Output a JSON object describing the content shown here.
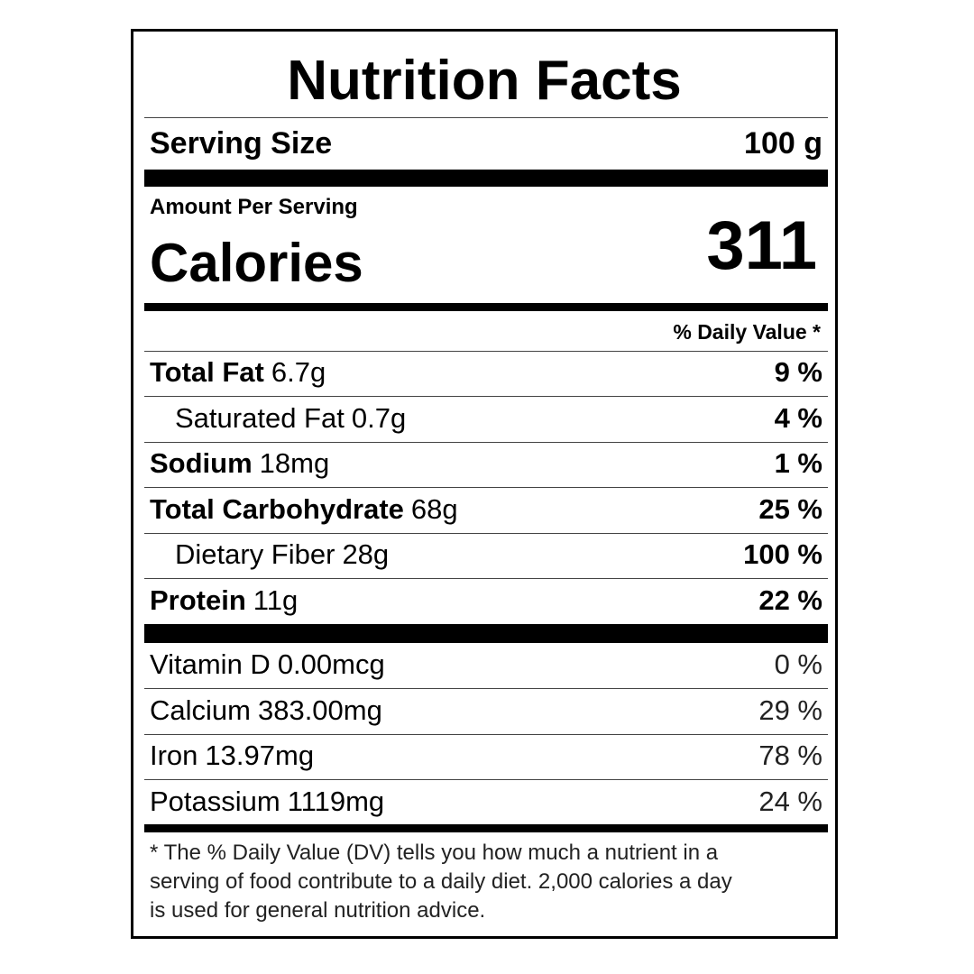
{
  "label": {
    "title": "Nutrition Facts",
    "serving": {
      "label": "Serving Size",
      "value": "100 g"
    },
    "amount_per_serving": "Amount Per Serving",
    "calories": {
      "label": "Calories",
      "value": "311"
    },
    "daily_value_header": "% Daily Value *",
    "nutrients": [
      {
        "name": "Total Fat",
        "amount": "6.7g",
        "dv": "9 %",
        "indent": false
      },
      {
        "name": "Saturated Fat",
        "amount": "0.7g",
        "dv": "4 %",
        "indent": true
      },
      {
        "name": "Sodium",
        "amount": "18mg",
        "dv": "1 %",
        "indent": false
      },
      {
        "name": "Total Carbohydrate",
        "amount": "68g",
        "dv": "25 %",
        "indent": false
      },
      {
        "name": "Dietary Fiber",
        "amount": "28g",
        "dv": "100 %",
        "indent": true
      },
      {
        "name": "Protein",
        "amount": "11g",
        "dv": "22 %",
        "indent": false
      }
    ],
    "vitamins": [
      {
        "name": "Vitamin D",
        "amount": "0.00mcg",
        "dv": "0 %"
      },
      {
        "name": "Calcium",
        "amount": "383.00mg",
        "dv": "29 %"
      },
      {
        "name": "Iron",
        "amount": "13.97mg",
        "dv": "78 %"
      },
      {
        "name": "Potassium",
        "amount": "1119mg",
        "dv": "24 %"
      }
    ],
    "footnote": [
      "* The % Daily Value (DV) tells you how much a nutrient in a",
      "serving of food contribute to a daily diet. 2,000 calories a day",
      "is used for general nutrition advice."
    ]
  }
}
